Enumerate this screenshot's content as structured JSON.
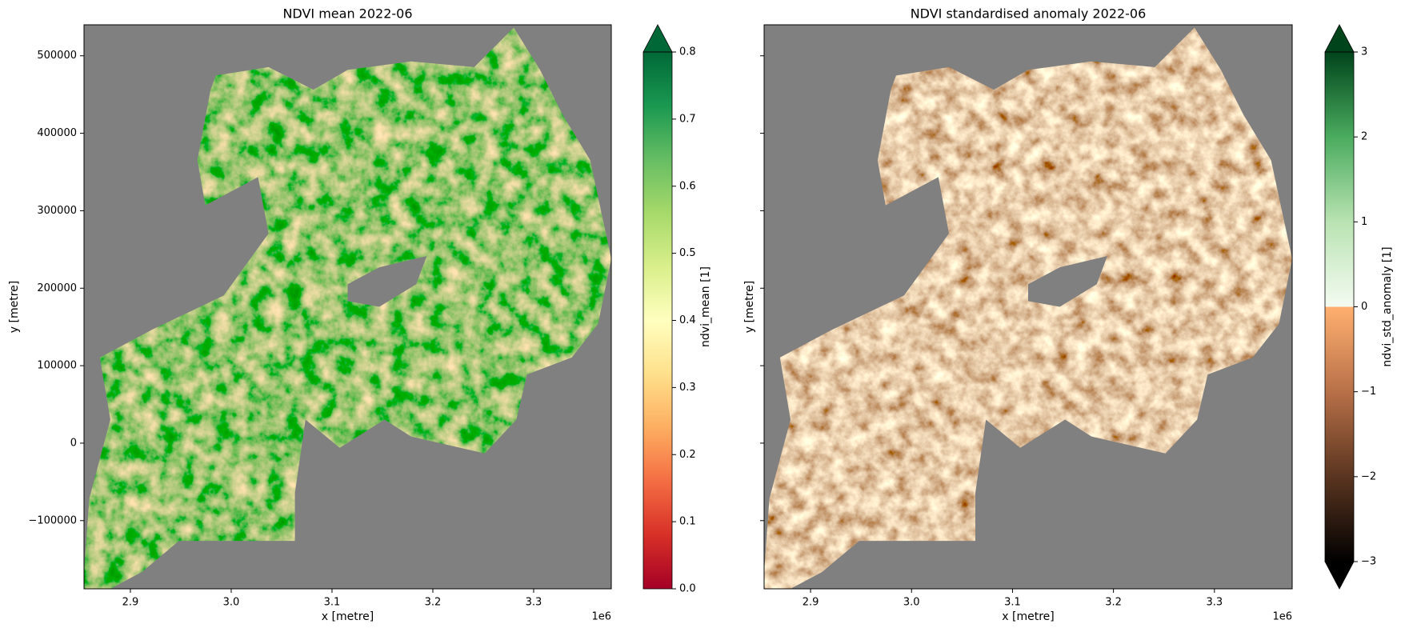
{
  "chart_data": [
    {
      "type": "heatmap",
      "title": "NDVI mean 2022-06",
      "xlabel": "x [metre]",
      "ylabel": "y [metre]",
      "x_offset_label": "1e6",
      "colorbar_label": "ndvi_mean [1]",
      "xlim": [
        2854000,
        3377000
      ],
      "ylim": [
        -188000,
        540000
      ],
      "xticks": [
        {
          "value": 2900000,
          "label": "2.9"
        },
        {
          "value": 3000000,
          "label": "3.0"
        },
        {
          "value": 3100000,
          "label": "3.1"
        },
        {
          "value": 3200000,
          "label": "3.2"
        },
        {
          "value": 3300000,
          "label": "3.3"
        }
      ],
      "yticks": [
        {
          "value": -100000,
          "label": "−100000"
        },
        0,
        100000,
        200000,
        300000,
        400000,
        500000
      ],
      "show_ytick_labels": true,
      "background": "#808080",
      "clim": [
        0,
        0.8
      ],
      "cticks": [
        {
          "value": 0,
          "label": "0.0"
        },
        0.1,
        0.2,
        0.3,
        0.4,
        0.5,
        0.6,
        0.7,
        0.8
      ],
      "extend": "max",
      "colormap": [
        [
          "#a50026",
          "#d73027",
          "#f46d43",
          "#fdae61",
          "#fee08b",
          "#ffffbf",
          "#d9ef8b",
          "#a6d96a",
          "#66bd63",
          "#1a9850",
          "#006837"
        ]
      ]
    },
    {
      "type": "heatmap",
      "title": "NDVI standardised anomaly 2022-06",
      "xlabel": "x [metre]",
      "ylabel": "y [metre]",
      "x_offset_label": "1e6",
      "colorbar_label": "ndvi_std_anomaly [1]",
      "xlim": [
        2854000,
        3377000
      ],
      "ylim": [
        -188000,
        540000
      ],
      "xticks": [
        {
          "value": 2900000,
          "label": "2.9"
        },
        {
          "value": 3000000,
          "label": "3.0"
        },
        {
          "value": 3100000,
          "label": "3.1"
        },
        {
          "value": 3200000,
          "label": "3.2"
        },
        {
          "value": 3300000,
          "label": "3.3"
        }
      ],
      "yticks": [
        -100000,
        0,
        100000,
        200000,
        300000,
        400000,
        500000
      ],
      "show_ytick_labels": false,
      "background": "#808080",
      "clim": [
        -3,
        3
      ],
      "cticks": [
        {
          "value": -3,
          "label": "−3"
        },
        {
          "value": -2,
          "label": "−2"
        },
        {
          "value": -1,
          "label": "−1"
        },
        0,
        1,
        2,
        3
      ],
      "extend": "both",
      "colormap": [
        [
          "#000000",
          "#5a3520",
          "#b87048",
          "#ffb070"
        ],
        [
          "#f4fbf1",
          "#b9e3b2",
          "#4aab5e",
          "#00441b"
        ]
      ]
    }
  ]
}
